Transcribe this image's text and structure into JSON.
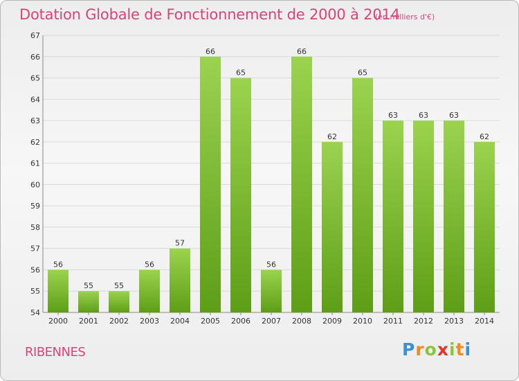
{
  "title": "Dotation Globale de Fonctionnement de 2000 à 2014",
  "subtitle": "(en milliers d'€)",
  "commune": "RIBENNES",
  "logo": {
    "text": "Proxiti"
  },
  "colors": {
    "title": "#d6457a",
    "bar_top": "#9bd34f",
    "bar_bottom": "#5e9e16",
    "grid": "#d9d9d9"
  },
  "chart_data": {
    "type": "bar",
    "categories": [
      "2000",
      "2001",
      "2002",
      "2003",
      "2004",
      "2005",
      "2006",
      "2007",
      "2008",
      "2009",
      "2010",
      "2011",
      "2012",
      "2013",
      "2014"
    ],
    "values": [
      56,
      55,
      55,
      56,
      57,
      66,
      65,
      56,
      66,
      62,
      65,
      63,
      63,
      63,
      62
    ],
    "title": "Dotation Globale de Fonctionnement de 2000 à 2014",
    "subtitle": "(en milliers d'€)",
    "xlabel": "",
    "ylabel": "",
    "ylim": [
      54,
      67
    ],
    "yticks": [
      54,
      55,
      56,
      57,
      58,
      59,
      60,
      61,
      62,
      63,
      64,
      65,
      66,
      67
    ],
    "grid": true,
    "legend": "none"
  }
}
